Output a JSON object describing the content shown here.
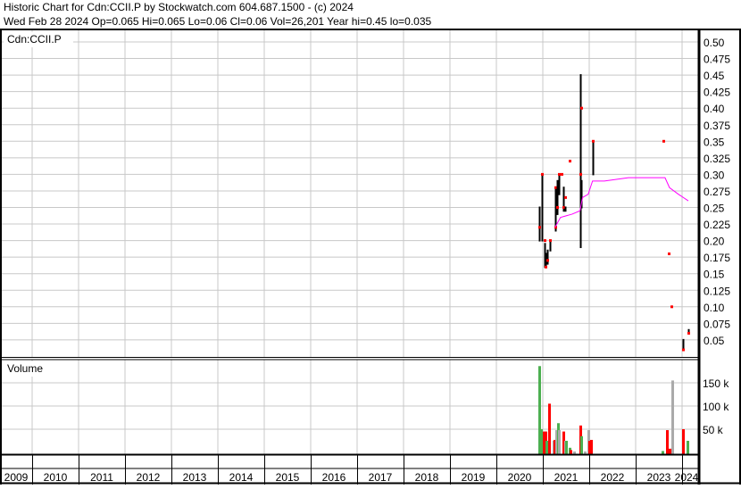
{
  "header": {
    "title": "Historic Chart for Cdn:CCII.P by Stockwatch.com 604.687.1500 - (c) 2024",
    "quote": "Wed Feb 28 2024  Op=0.065  Hi=0.065  Lo=0.06  Cl=0.06  Vol=26,201  Year hi=0.45  lo=0.035"
  },
  "price_panel": {
    "label": "Cdn:CCII.P"
  },
  "volume_panel": {
    "label": "Volume"
  },
  "colors": {
    "grid": "#c8c8c8",
    "bar": "#000000",
    "close_dot": "#ff0000",
    "moving_average": "#ff00ff",
    "vol_up": "#4caf50",
    "vol_down": "#ff0000",
    "vol_flat": "#aaaaaa"
  },
  "chart_data": [
    {
      "type": "ohlc",
      "ylim": [
        0.025,
        0.5
      ],
      "y_ticks": [
        "0.50",
        "0.475",
        "0.45",
        "0.425",
        "0.40",
        "0.375",
        "0.35",
        "0.325",
        "0.30",
        "0.275",
        "0.25",
        "0.225",
        "0.20",
        "0.175",
        "0.15",
        "0.125",
        "0.10",
        "0.075",
        "0.05"
      ],
      "x_ticks": [
        "2009",
        "2010",
        "2011",
        "2012",
        "2013",
        "2014",
        "2015",
        "2016",
        "2017",
        "2018",
        "2019",
        "2020",
        "2021",
        "2022",
        "2023",
        "2024"
      ],
      "bars": [
        {
          "date": "2020-12-03",
          "hi": 0.25,
          "lo": 0.2,
          "close": 0.22
        },
        {
          "date": "2020-12-26",
          "hi": 0.3,
          "lo": 0.2,
          "close": 0.3
        },
        {
          "date": "2021-01-16",
          "hi": 0.195,
          "lo": 0.16,
          "close": 0.2
        },
        {
          "date": "2021-01-21",
          "hi": 0.18,
          "lo": 0.16,
          "close": 0.16
        },
        {
          "date": "2021-02-02",
          "hi": 0.185,
          "lo": 0.165,
          "close": 0.17
        },
        {
          "date": "2021-02-28",
          "hi": 0.2,
          "lo": 0.185,
          "close": 0.2
        },
        {
          "date": "2021-04-07",
          "hi": 0.28,
          "lo": 0.215,
          "close": 0.28
        },
        {
          "date": "2021-04-11",
          "hi": 0.25,
          "lo": 0.225,
          "close": 0.22
        },
        {
          "date": "2021-04-25",
          "hi": 0.29,
          "lo": 0.24,
          "close": 0.25
        },
        {
          "date": "2021-05-09",
          "hi": 0.3,
          "lo": 0.27,
          "close": 0.3
        },
        {
          "date": "2021-05-28",
          "hi": 0.3,
          "lo": 0.3,
          "close": 0.3
        },
        {
          "date": "2021-06-13",
          "hi": 0.28,
          "lo": 0.245,
          "close": 0.25
        },
        {
          "date": "2021-06-27",
          "hi": 0.25,
          "lo": 0.245,
          "close": 0.265
        },
        {
          "date": "2021-07-30",
          "hi": 0.32,
          "lo": 0.32,
          "close": 0.32
        },
        {
          "date": "2021-10-20",
          "hi": 0.45,
          "lo": 0.19,
          "close": 0.3
        },
        {
          "date": "2021-10-29",
          "hi": 0.29,
          "lo": 0.25,
          "close": 0.4
        },
        {
          "date": "2022-01-27",
          "hi": 0.35,
          "lo": 0.3,
          "close": 0.35
        },
        {
          "date": "2023-08-06",
          "hi": 0.35,
          "lo": 0.35,
          "close": 0.35
        },
        {
          "date": "2023-09-17",
          "hi": 0.18,
          "lo": 0.18,
          "close": 0.18
        },
        {
          "date": "2023-10-08",
          "hi": 0.1,
          "lo": 0.1,
          "close": 0.1
        },
        {
          "date": "2024-01-07",
          "hi": 0.05,
          "lo": 0.035,
          "close": 0.035
        },
        {
          "date": "2024-02-19",
          "hi": 0.065,
          "lo": 0.06,
          "close": 0.06
        }
      ],
      "moving_average": [
        {
          "date": "2021-04-07",
          "value": 0.22
        },
        {
          "date": "2021-05-20",
          "value": 0.235
        },
        {
          "date": "2021-08-20",
          "value": 0.24
        },
        {
          "date": "2021-10-20",
          "value": 0.245
        },
        {
          "date": "2021-11-10",
          "value": 0.265
        },
        {
          "date": "2021-12-24",
          "value": 0.27
        },
        {
          "date": "2022-01-27",
          "value": 0.29
        },
        {
          "date": "2022-04-30",
          "value": 0.29
        },
        {
          "date": "2022-11-05",
          "value": 0.295
        },
        {
          "date": "2023-08-20",
          "value": 0.295
        },
        {
          "date": "2023-09-24",
          "value": 0.28
        },
        {
          "date": "2023-12-03",
          "value": 0.27
        },
        {
          "date": "2024-02-19",
          "value": 0.26
        }
      ]
    },
    {
      "type": "bar",
      "ylim": [
        0,
        200000
      ],
      "y_ticks": [
        "150 k",
        "100 k",
        "50 k"
      ],
      "y_tick_values": [
        150000,
        100000,
        50000
      ],
      "bars": [
        {
          "date": "2020-12-03",
          "volume": 186000,
          "dir": "up"
        },
        {
          "date": "2020-12-17",
          "volume": 50000,
          "dir": "up"
        },
        {
          "date": "2021-01-07",
          "volume": 45000,
          "dir": "down"
        },
        {
          "date": "2021-01-21",
          "volume": 45000,
          "dir": "down"
        },
        {
          "date": "2021-01-28",
          "volume": 25000,
          "dir": "up"
        },
        {
          "date": "2021-02-19",
          "volume": 105000,
          "dir": "down"
        },
        {
          "date": "2021-03-26",
          "volume": 25000,
          "dir": "flat"
        },
        {
          "date": "2021-04-01",
          "volume": 27000,
          "dir": "down"
        },
        {
          "date": "2021-04-16",
          "volume": 48000,
          "dir": "flat"
        },
        {
          "date": "2021-04-30",
          "volume": 63000,
          "dir": "up"
        },
        {
          "date": "2021-05-09",
          "volume": 48000,
          "dir": "flat"
        },
        {
          "date": "2021-06-13",
          "volume": 45000,
          "dir": "down"
        },
        {
          "date": "2021-06-27",
          "volume": 25000,
          "dir": "flat"
        },
        {
          "date": "2021-07-01",
          "volume": 25000,
          "dir": "up"
        },
        {
          "date": "2021-07-30",
          "volume": 10000,
          "dir": "up"
        },
        {
          "date": "2021-08-06",
          "volume": 5000,
          "dir": "down"
        },
        {
          "date": "2021-09-03",
          "volume": 2000,
          "dir": "flat"
        },
        {
          "date": "2021-10-20",
          "volume": 58000,
          "dir": "down"
        },
        {
          "date": "2021-10-29",
          "volume": 35000,
          "dir": "up"
        },
        {
          "date": "2021-11-26",
          "volume": 2000,
          "dir": "flat"
        },
        {
          "date": "2021-12-24",
          "volume": 48000,
          "dir": "flat"
        },
        {
          "date": "2022-01-01",
          "volume": 25000,
          "dir": "down"
        },
        {
          "date": "2022-01-15",
          "volume": 27000,
          "dir": "down"
        },
        {
          "date": "2023-07-30",
          "volume": 3000,
          "dir": "up"
        },
        {
          "date": "2023-09-03",
          "volume": 48000,
          "dir": "down"
        },
        {
          "date": "2023-09-24",
          "volume": 8000,
          "dir": "down"
        },
        {
          "date": "2023-10-15",
          "volume": 155000,
          "dir": "flat"
        },
        {
          "date": "2024-01-07",
          "volume": 50000,
          "dir": "down"
        },
        {
          "date": "2024-02-12",
          "volume": 25000,
          "dir": "up"
        }
      ]
    }
  ]
}
